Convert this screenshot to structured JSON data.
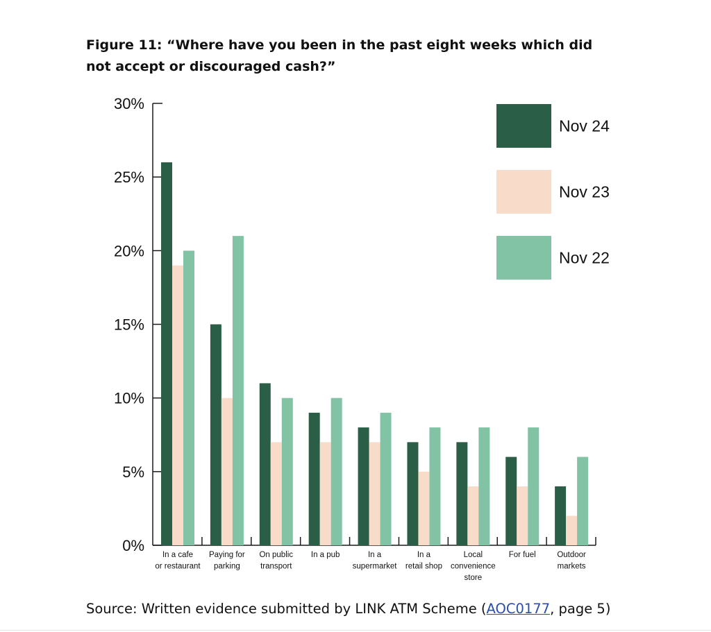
{
  "figure": {
    "title": "Figure 11: “Where have you been in the past eight weeks which did not accept or discouraged cash?”"
  },
  "source": {
    "prefix": "Source: Written evidence submitted by LINK ATM Scheme (",
    "link": "AOC0177",
    "suffix": ", page 5)"
  },
  "colors": {
    "nov24": "#2b5e46",
    "nov23": "#f8dcc9",
    "nov22": "#82c3a5",
    "link": "#2a4fa8"
  },
  "chart_data": {
    "type": "bar",
    "title": "Figure 11: “Where have you been in the past eight weeks which did not accept or discouraged cash?”",
    "xlabel": "",
    "ylabel": "",
    "ylim": [
      0,
      30
    ],
    "yticks": [
      "0%",
      "5%",
      "10%",
      "15%",
      "20%",
      "25%",
      "30%"
    ],
    "ytick_values": [
      0,
      5,
      10,
      15,
      20,
      25,
      30
    ],
    "grid": false,
    "legend_position": "top-right",
    "categories": [
      [
        "In a cafe",
        "or restaurant"
      ],
      [
        "Paying for",
        "parking"
      ],
      [
        "On public",
        "transport"
      ],
      [
        "In a pub"
      ],
      [
        "In a",
        "supermarket"
      ],
      [
        "In a",
        "retail shop"
      ],
      [
        "Local",
        "convenience",
        "store"
      ],
      [
        "For fuel"
      ],
      [
        "Outdoor",
        "markets"
      ]
    ],
    "series": [
      {
        "name": "Nov 24",
        "color": "#2b5e46",
        "values": [
          26,
          15,
          11,
          9,
          8,
          7,
          7,
          6,
          4
        ]
      },
      {
        "name": "Nov 23",
        "color": "#f8dcc9",
        "values": [
          19,
          10,
          7,
          7,
          7,
          5,
          4,
          4,
          2
        ]
      },
      {
        "name": "Nov 22",
        "color": "#82c3a5",
        "values": [
          20,
          21,
          10,
          10,
          9,
          8,
          8,
          8,
          6
        ]
      }
    ]
  }
}
